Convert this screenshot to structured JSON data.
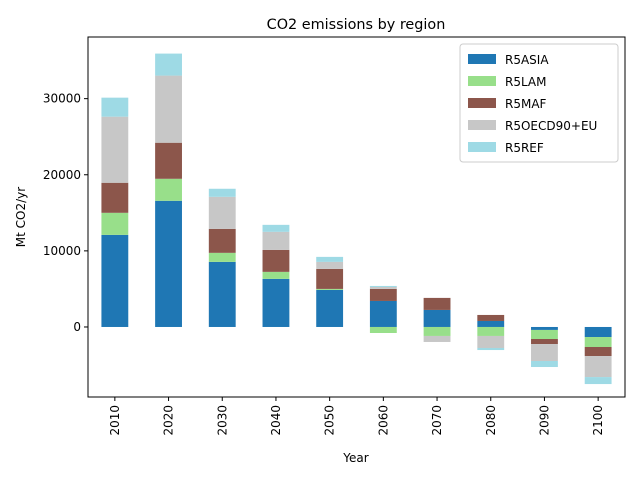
{
  "chart_data": {
    "type": "bar",
    "stacked": true,
    "title": "CO2 emissions by region",
    "xlabel": "Year",
    "ylabel": "Mt CO2/yr",
    "categories": [
      "2010",
      "2020",
      "2030",
      "2040",
      "2050",
      "2060",
      "2070",
      "2080",
      "2090",
      "2100"
    ],
    "series": [
      {
        "name": "R5ASIA",
        "color": "#1f77b4",
        "values": [
          12100,
          16580,
          8550,
          6320,
          4870,
          3420,
          2240,
          790,
          -390,
          -1320
        ]
      },
      {
        "name": "R5LAM",
        "color": "#98df8a",
        "values": [
          2900,
          2890,
          1190,
          920,
          130,
          -790,
          -1180,
          -1180,
          -1190,
          -1310
        ]
      },
      {
        "name": "R5MAF",
        "color": "#8c564b",
        "values": [
          3950,
          4740,
          3150,
          2890,
          2630,
          1580,
          1580,
          790,
          -660,
          -1190
        ]
      },
      {
        "name": "R5OECD90+EU",
        "color": "#c7c7c7",
        "values": [
          8680,
          8820,
          4210,
          2370,
          920,
          260,
          -790,
          -1580,
          -2230,
          -2760
        ]
      },
      {
        "name": "R5REF",
        "color": "#9edae5",
        "values": [
          2500,
          2890,
          1060,
          920,
          660,
          130,
          0,
          -270,
          -790,
          -920
        ]
      }
    ],
    "ylim": [
      -9200,
      38100
    ],
    "yticks": [
      0,
      10000,
      20000,
      30000
    ],
    "legend": "upper right"
  }
}
